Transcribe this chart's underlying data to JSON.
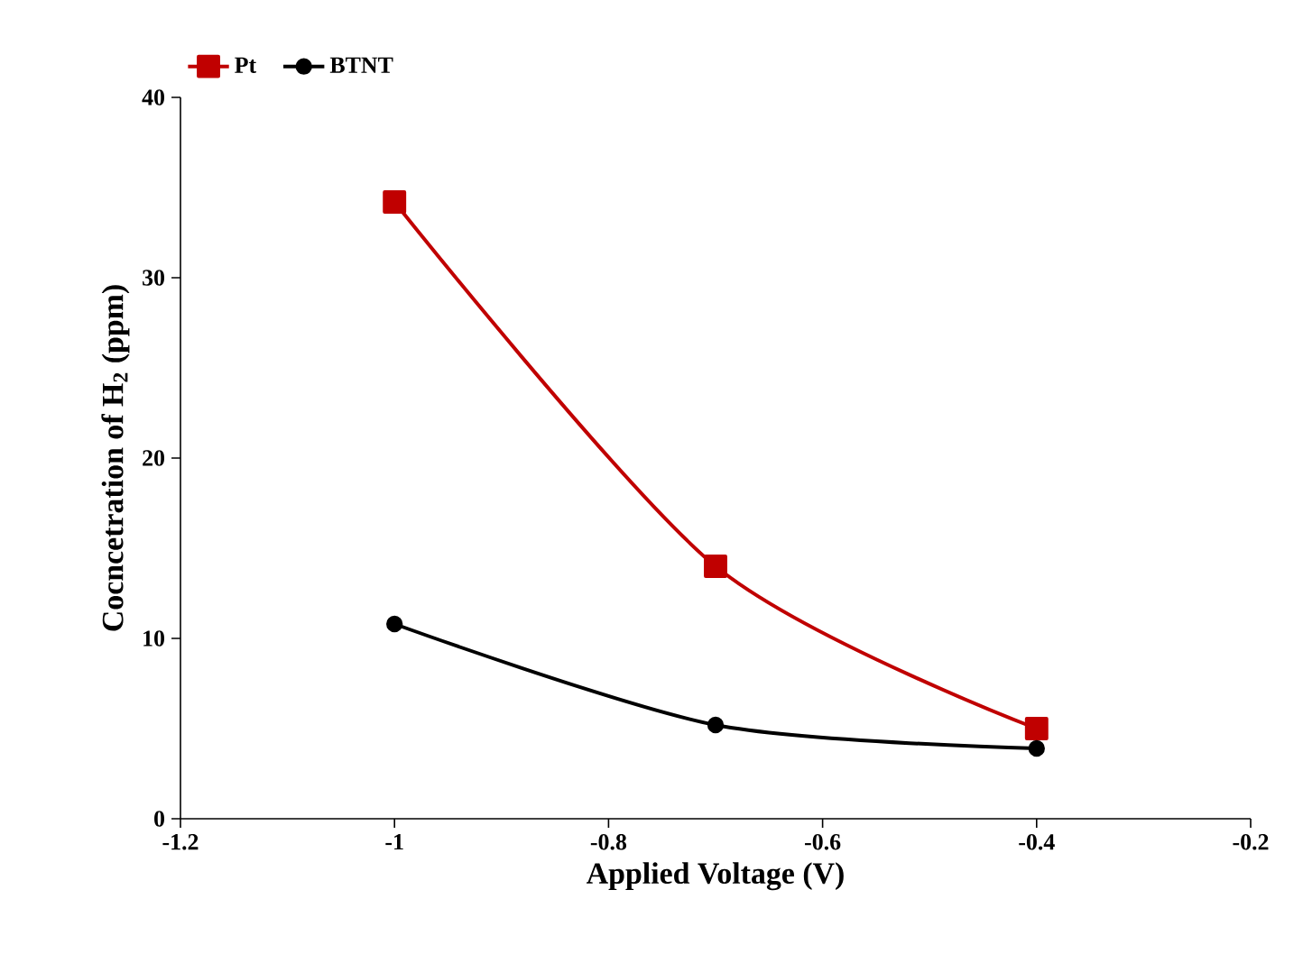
{
  "chart_data": {
    "type": "line",
    "xlabel": "Applied Voltage (V)",
    "ylabel": "Cocncetration of H$_{2}$ (ppm)",
    "x": [
      -1,
      -0.7,
      -0.4
    ],
    "series": [
      {
        "name": "Pt",
        "color": "#c00000",
        "values": [
          34.2,
          14,
          5
        ],
        "marker": "square"
      },
      {
        "name": "BTNT",
        "color": "#000000",
        "values": [
          10.8,
          5.2,
          3.9
        ],
        "marker": "circle"
      }
    ],
    "xlim": [
      -1.2,
      -0.2
    ],
    "xticks": [
      -1.2,
      -1,
      -0.8,
      -0.6,
      -0.4,
      -0.2
    ],
    "ylim": [
      0,
      40
    ],
    "yticks": [
      0,
      10,
      20,
      30,
      40
    ],
    "grid": false,
    "legend": "top left"
  }
}
